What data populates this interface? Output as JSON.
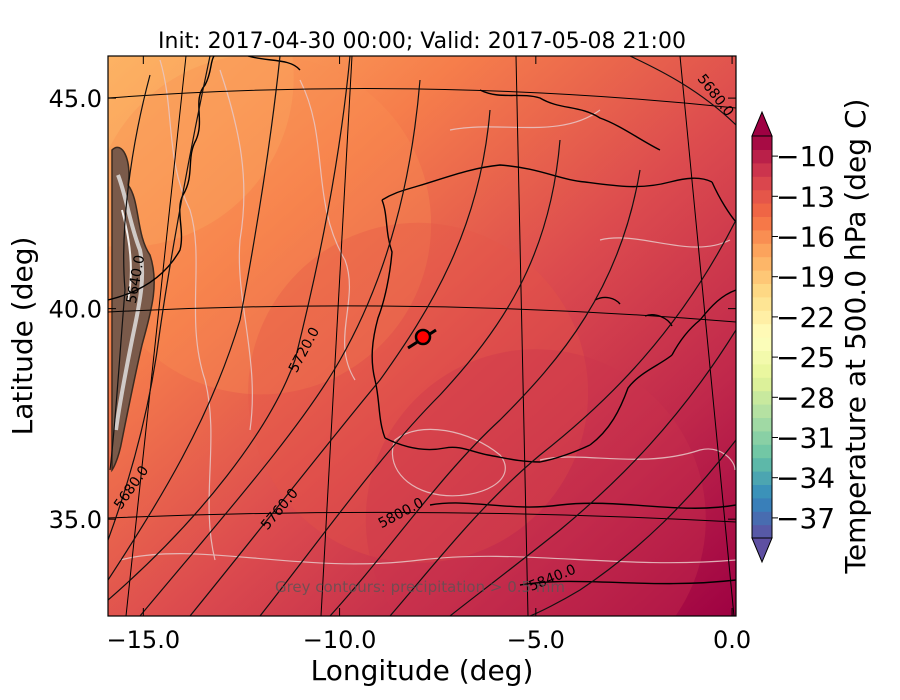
{
  "chart_data": {
    "type": "heatmap",
    "title": "Init: 2017-04-30 00:00; Valid: 2017-05-08 21:00",
    "xlabel": "Longitude (deg)",
    "ylabel": "Latitude (deg)",
    "xlim": [
      -15.9,
      0.1
    ],
    "ylim": [
      32.7,
      46.0
    ],
    "x_ticks": [
      -15.0,
      -10.0,
      -5.0,
      0.0
    ],
    "x_tick_labels": [
      "−15.0",
      "−10.0",
      "−5.0",
      "0.0"
    ],
    "y_ticks": [
      35.0,
      40.0,
      45.0
    ],
    "y_tick_labels": [
      "35.0",
      "40.0",
      "45.0"
    ],
    "grid": true,
    "colorbar": {
      "label": "Temperature at 500.0 hPa (deg C)",
      "min": -38.5,
      "max": -8.5,
      "step": 1,
      "ticks": [
        -10,
        -13,
        -16,
        -19,
        -22,
        -25,
        -28,
        -31,
        -34,
        -37
      ],
      "tick_labels": [
        "−10",
        "−13",
        "−16",
        "−19",
        "−22",
        "−25",
        "−28",
        "−31",
        "−34",
        "−37"
      ],
      "extend": "both",
      "colormap": "Spectral_r"
    },
    "field_gradient": [
      {
        "lon": -15.5,
        "lat": 45.5,
        "value": -18
      },
      {
        "lon": -12.0,
        "lat": 42.0,
        "value": -16
      },
      {
        "lon": -8.0,
        "lat": 38.0,
        "value": -13
      },
      {
        "lon": -5.0,
        "lat": 35.0,
        "value": -11
      }
    ],
    "height_contours": {
      "labels": [
        {
          "text": "5640.0",
          "value": 5640,
          "lon": -14.5,
          "lat": 40.9
        },
        {
          "text": "5680.0",
          "value": 5680,
          "lon": -15.4,
          "lat": 35.3
        },
        {
          "text": "5680.0",
          "value": 5680,
          "lon": -0.3,
          "lat": 45.0
        },
        {
          "text": "5720.0",
          "value": 5720,
          "lon": -10.5,
          "lat": 38.7
        },
        {
          "text": "5760.0",
          "value": 5760,
          "lon": -11.0,
          "lat": 35.2
        },
        {
          "text": "5800.0",
          "value": 5800,
          "lon": -7.5,
          "lat": 35.0
        },
        {
          "text": "5840.0",
          "value": 5840,
          "lon": -5.0,
          "lat": 33.6
        }
      ]
    },
    "marker": {
      "lon": -7.6,
      "lat": 39.3,
      "color": "#ff0000"
    },
    "annotation": "Grey contours: precipitation > 0.5 mm"
  }
}
